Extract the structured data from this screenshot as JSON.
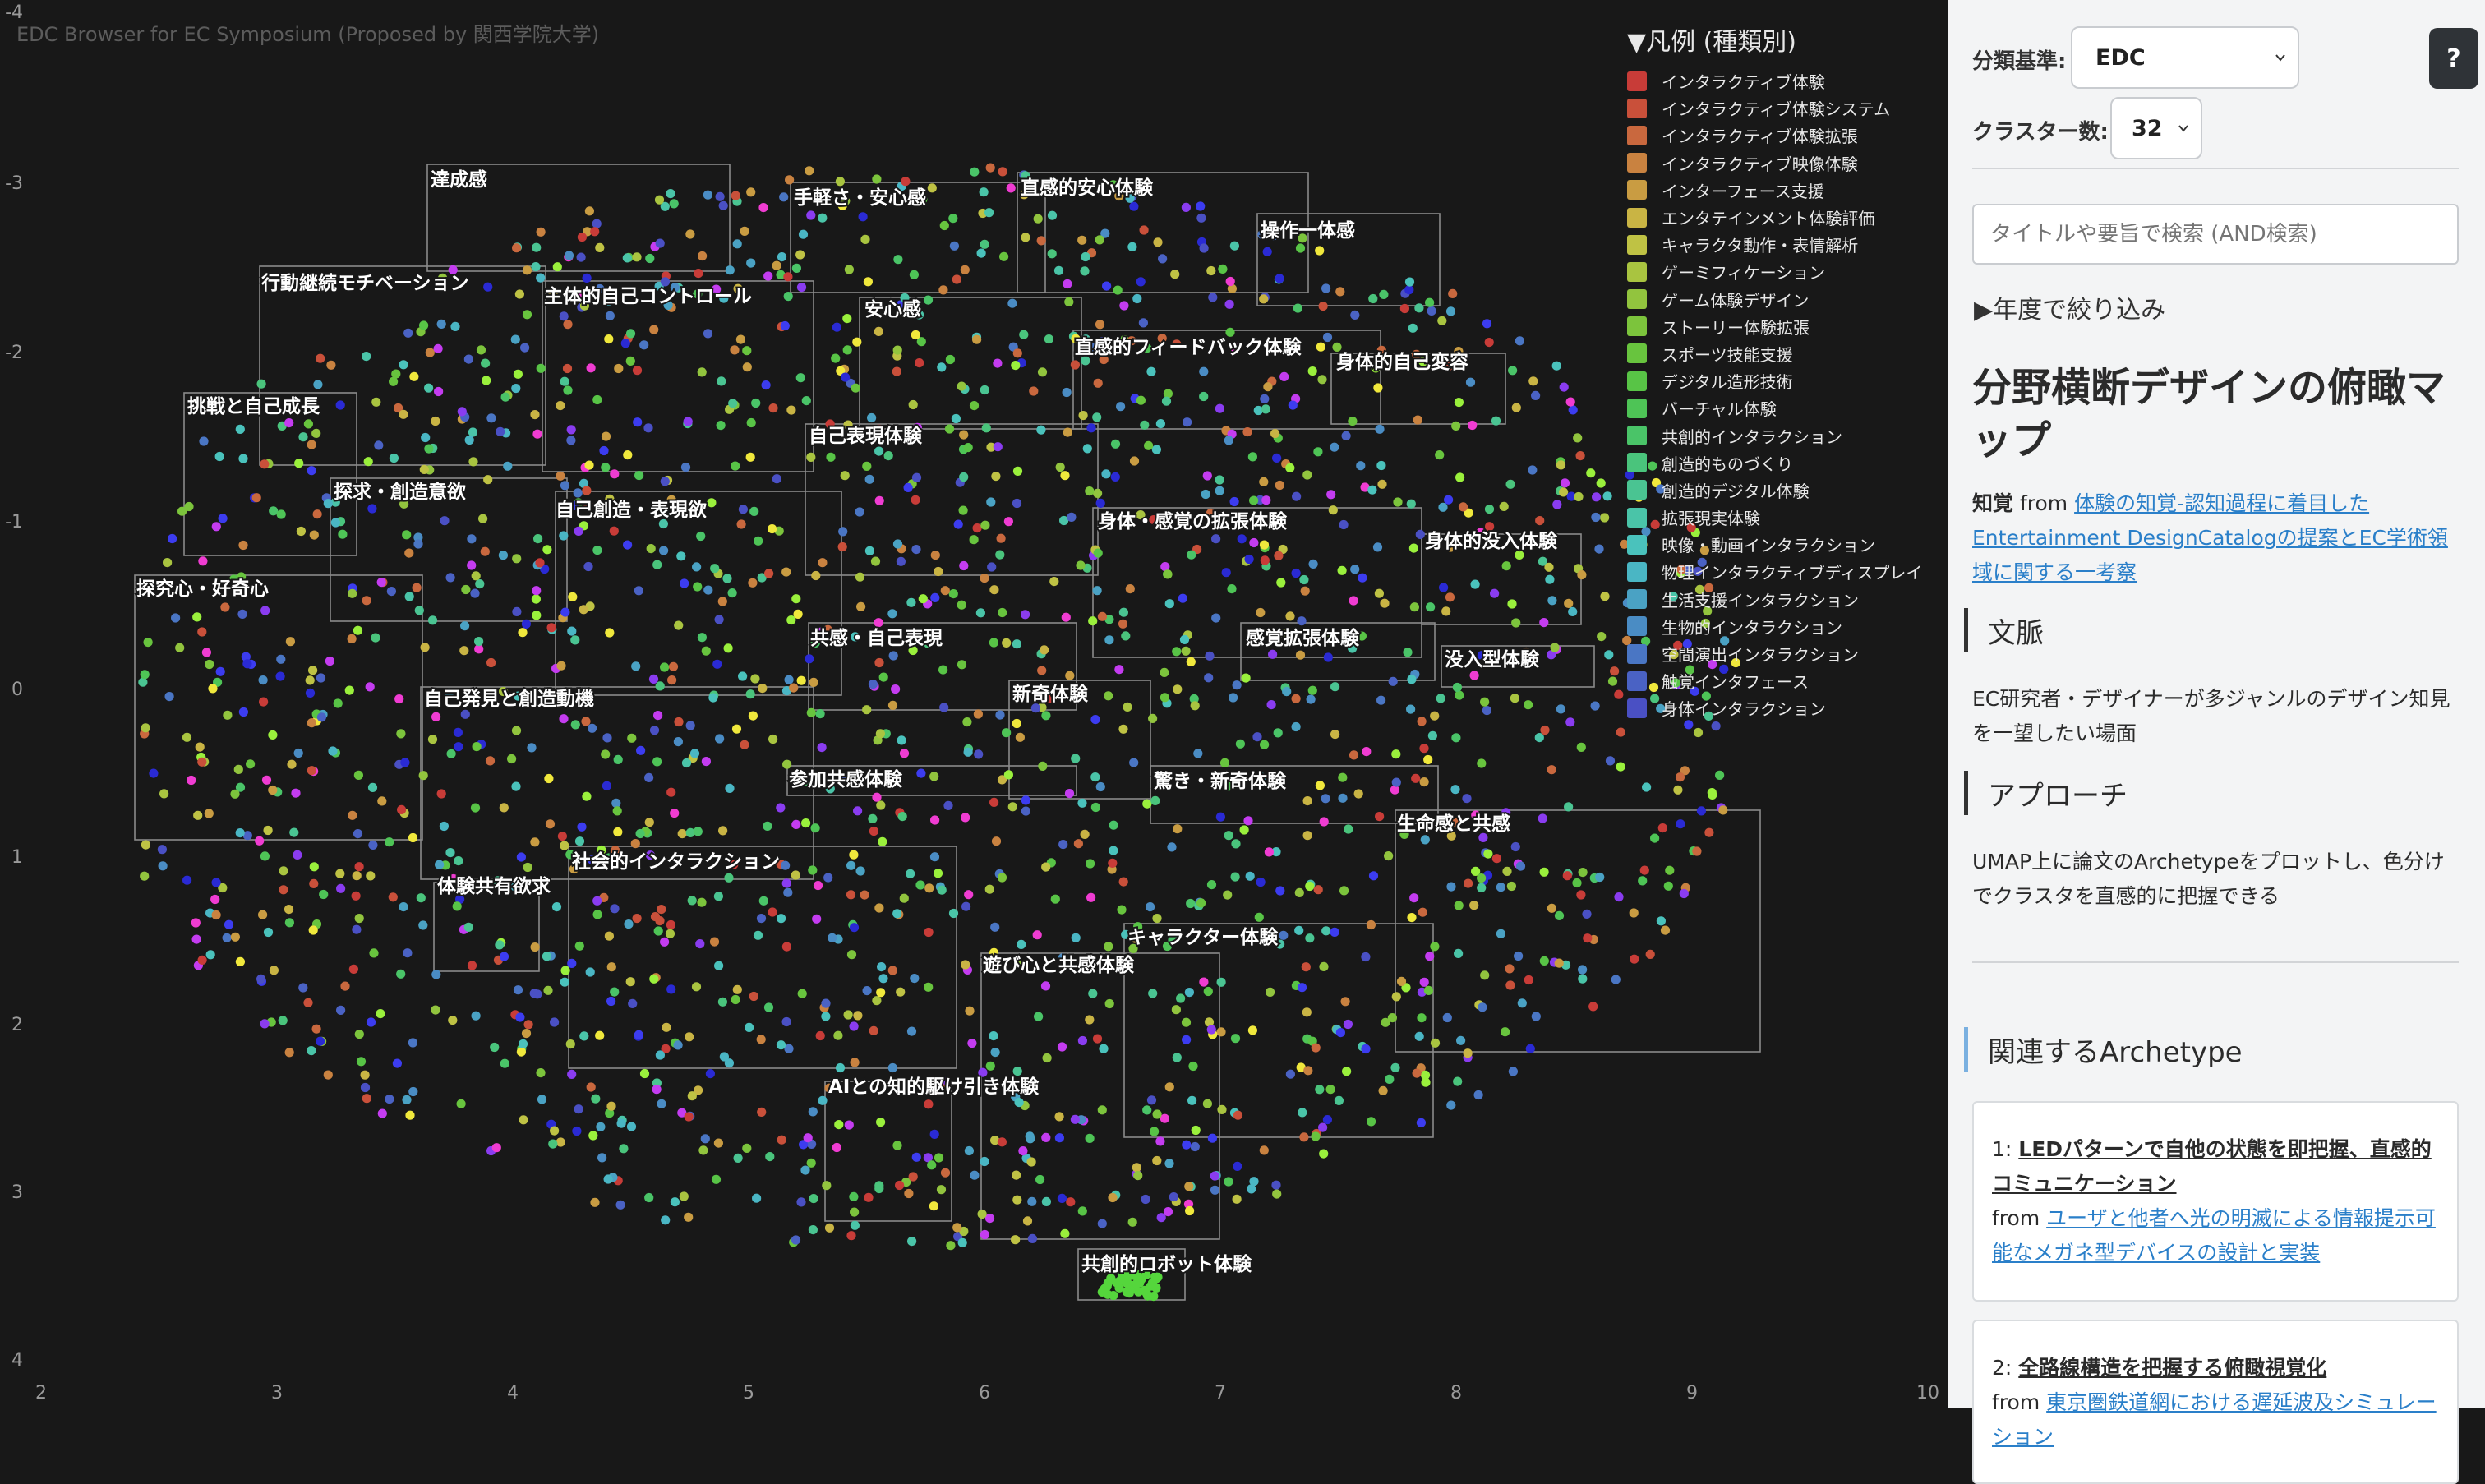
{
  "watermark": "EDC Browser for EC Symposium (Proposed by 関西学院大学)",
  "legend": {
    "title": "▼凡例 (種類別)",
    "items": [
      {
        "label": "インタラクティブ体験",
        "color": "#c83c38"
      },
      {
        "label": "インタラクティブ体験システム",
        "color": "#c9503a"
      },
      {
        "label": "インタラクティブ体験拡張",
        "color": "#c9683e"
      },
      {
        "label": "インタラクティブ映像体験",
        "color": "#c98240"
      },
      {
        "label": "インターフェース支援",
        "color": "#c99c42"
      },
      {
        "label": "エンタテインメント体験評価",
        "color": "#c9b444"
      },
      {
        "label": "キャラクタ動作・表情解析",
        "color": "#bfc244"
      },
      {
        "label": "ゲーミフィケーション",
        "color": "#a9c440"
      },
      {
        "label": "ゲーム体験デザイン",
        "color": "#92c43e"
      },
      {
        "label": "ストーリー体験拡張",
        "color": "#7cc43c"
      },
      {
        "label": "スポーツ技能支援",
        "color": "#68c43e"
      },
      {
        "label": "デジタル造形技術",
        "color": "#58c446"
      },
      {
        "label": "バーチャル体験",
        "color": "#4ec456"
      },
      {
        "label": "共創的インタラクション",
        "color": "#4ac468"
      },
      {
        "label": "創造的ものづくり",
        "color": "#4ac47c"
      },
      {
        "label": "創造的デジタル体験",
        "color": "#4ac492"
      },
      {
        "label": "拡張現実体験",
        "color": "#4ac4a8"
      },
      {
        "label": "映像・動画インタラクション",
        "color": "#4ac2bc"
      },
      {
        "label": "物理インタラクティブディスプレイ",
        "color": "#4ab6c4"
      },
      {
        "label": "生活支援インタラクション",
        "color": "#4aa2c4"
      },
      {
        "label": "生物的インタラクション",
        "color": "#4a8cc4"
      },
      {
        "label": "空間演出インタラクション",
        "color": "#4a76c4"
      },
      {
        "label": "触覚インタフェース",
        "color": "#4a62c4"
      },
      {
        "label": "身体インタラクション",
        "color": "#4a50c4"
      }
    ]
  },
  "axes": {
    "x_ticks": [
      "2",
      "3",
      "4",
      "5",
      "6",
      "7",
      "8",
      "9",
      "10"
    ],
    "y_ticks": [
      "-4",
      "-3",
      "-2",
      "-1",
      "0",
      "1",
      "2",
      "3",
      "4"
    ]
  },
  "clusters": [
    {
      "label": "達成感"
    },
    {
      "label": "手軽さ・安心感"
    },
    {
      "label": "直感的安心体験"
    },
    {
      "label": "操作一体感"
    },
    {
      "label": "行動継続モチベーション"
    },
    {
      "label": "主体的自己コントロール"
    },
    {
      "label": "安心感"
    },
    {
      "label": "直感的フィードバック体験"
    },
    {
      "label": "身体的自己変容"
    },
    {
      "label": "挑戦と自己成長"
    },
    {
      "label": "自己表現体験"
    },
    {
      "label": "探求・創造意欲"
    },
    {
      "label": "自己創造・表現欲"
    },
    {
      "label": "身体・感覚の拡張体験"
    },
    {
      "label": "身体的没入体験"
    },
    {
      "label": "探究心・好奇心"
    },
    {
      "label": "共感・自己表現"
    },
    {
      "label": "感覚拡張体験"
    },
    {
      "label": "没入型体験"
    },
    {
      "label": "新奇体験"
    },
    {
      "label": "自己発見と創造動機"
    },
    {
      "label": "参加共感体験"
    },
    {
      "label": "驚き・新奇体験"
    },
    {
      "label": "生命感と共感"
    },
    {
      "label": "社会的インタラクション"
    },
    {
      "label": "体験共有欲求"
    },
    {
      "label": "キャラクター体験"
    },
    {
      "label": "遊び心と共感体験"
    },
    {
      "label": "AIとの知的駆け引き体験"
    },
    {
      "label": "共創的ロボット体験"
    }
  ],
  "sidebar": {
    "classify_label": "分類基準:",
    "classify_value": "EDC",
    "cluster_label": "クラスター数:",
    "cluster_value": "32",
    "help": "?",
    "search_placeholder": "タイトルや要旨で検索 (AND検索)",
    "year_filter": "▶年度で絞り込み",
    "title": "分野横断デザインの俯瞰マップ",
    "source_bold": "知覚",
    "source_from": " from ",
    "source_link": "体験の知覚-認知過程に着目したEntertainment DesignCatalogの提案とEC学術領域に関する一考察",
    "context_title": "文脈",
    "context_text": "EC研究者・デザイナーが多ジャンルのデザイン知見を一望したい場面",
    "approach_title": "アプローチ",
    "approach_text": "UMAP上に論文のArchetypeをプロットし、色分けでクラスタを直感的に把握できる",
    "related_title": "関連するArchetype",
    "related": [
      {
        "num": "1: ",
        "title": "LEDパターンで自他の状態を即把握、直感的コミュニケーション",
        "from": "from ",
        "link": "ユーザと他者へ光の明滅による情報提示可能なメガネ型デバイスの設計と実装"
      },
      {
        "num": "2: ",
        "title": "全路線構造を把握する俯瞰視覚化",
        "from": "from ",
        "link": "東京圏鉄道網における遅延波及シミュレーション"
      }
    ]
  }
}
